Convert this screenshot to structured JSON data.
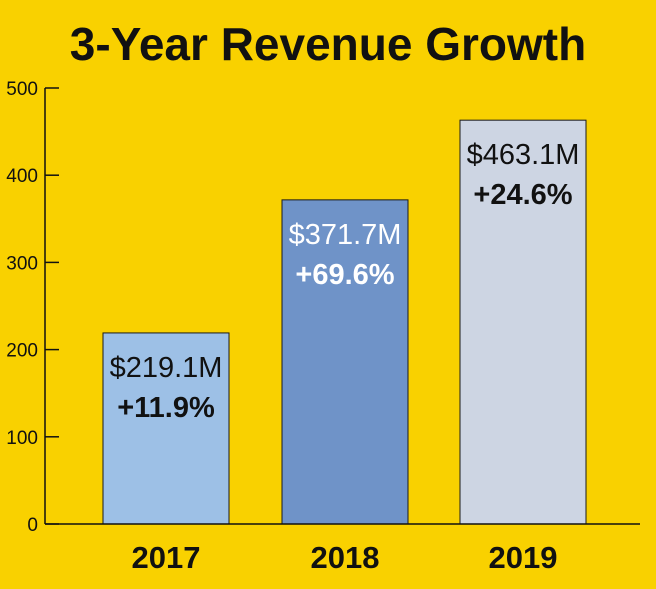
{
  "chart_data": {
    "type": "bar",
    "title": "3-Year Revenue Growth",
    "categories": [
      "2017",
      "2018",
      "2019"
    ],
    "values": [
      219.1,
      371.7,
      463.1
    ],
    "value_labels": [
      "$219.1M",
      "$371.7M",
      "$463.1M"
    ],
    "growth_labels": [
      "+11.9%",
      "+69.6%",
      "+24.6%"
    ],
    "yticks": [
      "0",
      "100",
      "200",
      "300",
      "400",
      "500"
    ],
    "ylim": [
      0,
      500
    ],
    "xlabel": "",
    "ylabel": "",
    "grid": false,
    "legend": "none"
  },
  "colors": {
    "background": "#F9D100",
    "bars": [
      "#9DC0E6",
      "#6F93C8",
      "#CDD5E3"
    ],
    "label_text": [
      "#111111",
      "#FFFFFF",
      "#111111"
    ],
    "axis": "#111111"
  }
}
